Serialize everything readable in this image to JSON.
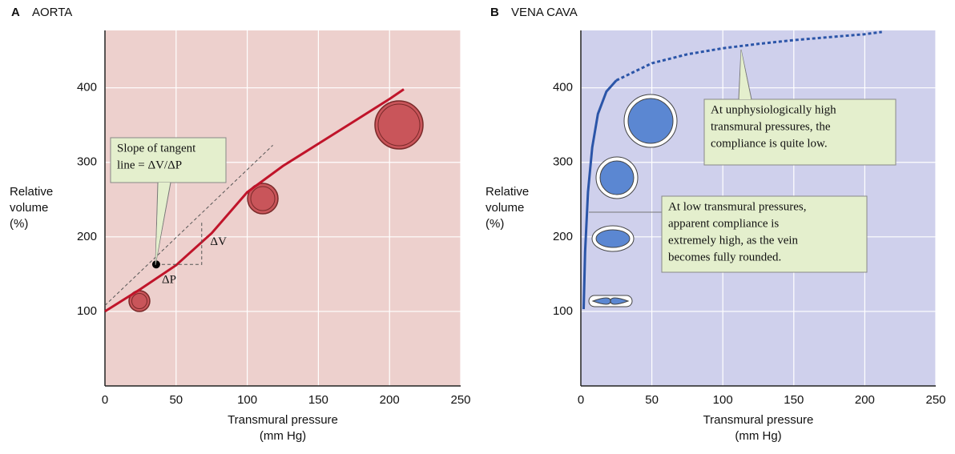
{
  "chart_data": [
    {
      "type": "line",
      "panel": "A",
      "title": "AORTA",
      "xlabel": [
        "Transmural pressure",
        "(mm Hg)"
      ],
      "ylabel": [
        "Relative",
        "volume",
        "(%)"
      ],
      "xlim": [
        0,
        250
      ],
      "ylim": [
        0,
        477
      ],
      "xticks": [
        0,
        50,
        100,
        150,
        200,
        250
      ],
      "yticks": [
        100,
        200,
        300,
        400
      ],
      "grid": true,
      "x": [
        0,
        25,
        50,
        75,
        100,
        125,
        150,
        175,
        200,
        210
      ],
      "series": [
        {
          "color": "#c0142a",
          "dashed": false,
          "values": [
            100,
            130,
            162,
            205,
            260,
            295,
            325,
            355,
            385,
            398
          ]
        }
      ],
      "marks": [
        "ΔV",
        "ΔP"
      ],
      "annotations": [
        {
          "text": [
            "Slope of tangent",
            "line = ΔV/ΔP"
          ]
        }
      ]
    },
    {
      "type": "line",
      "panel": "B",
      "title": "VENA CAVA",
      "xlabel": [
        "Transmural pressure",
        "(mm Hg)"
      ],
      "ylabel": [
        "Relative",
        "volume",
        "(%)"
      ],
      "xlim": [
        0,
        250
      ],
      "ylim": [
        0,
        477
      ],
      "xticks": [
        0,
        50,
        100,
        150,
        200,
        250
      ],
      "yticks": [
        100,
        200,
        300,
        400
      ],
      "grid": true,
      "x": [
        2,
        3,
        5,
        8,
        12,
        18,
        25,
        50,
        75,
        100,
        125,
        150,
        175,
        200,
        212
      ],
      "series": [
        {
          "color": "#2b55a8",
          "dashed": false,
          "values": [
            103,
            180,
            260,
            320,
            365,
            395,
            410,
            null,
            null,
            null,
            null,
            null,
            null,
            null,
            null
          ]
        },
        {
          "color": "#2b55a8",
          "dashed": true,
          "values": [
            null,
            null,
            null,
            null,
            null,
            null,
            410,
            433,
            445,
            453,
            459,
            464,
            468,
            472,
            475
          ]
        }
      ],
      "annotations": [
        {
          "text": [
            "At unphysiologically high",
            "transmural pressures, the",
            "compliance is quite low."
          ]
        },
        {
          "text": [
            "At low transmural pressures,",
            "apparent compliance is",
            "extremely high, as the vein",
            "becomes fully rounded."
          ]
        }
      ]
    }
  ]
}
